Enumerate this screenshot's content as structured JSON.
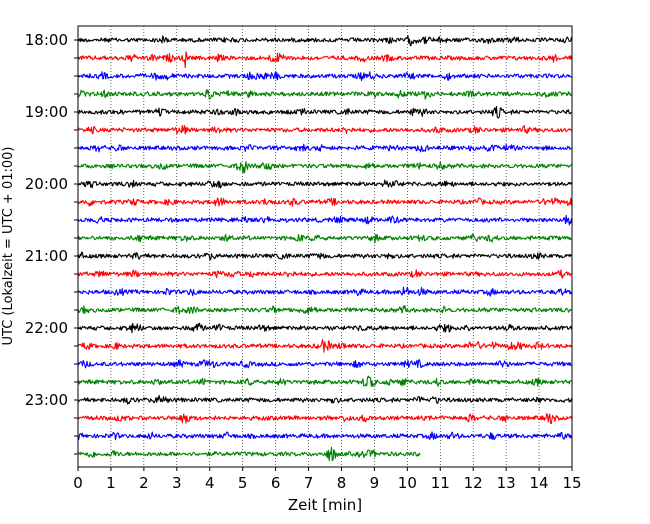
{
  "chart_data": {
    "type": "line",
    "title": "",
    "xlabel": "Zeit  [min]",
    "ylabel": "UTC (Lokalzeit = UTC + 01:00)",
    "xlim": [
      0,
      15
    ],
    "x_ticks": [
      "0",
      "1",
      "2",
      "3",
      "4",
      "5",
      "6",
      "7",
      "8",
      "9",
      "10",
      "11",
      "12",
      "13",
      "14",
      "15"
    ],
    "y_tick_labels": [
      "18:00",
      "19:00",
      "20:00",
      "21:00",
      "22:00",
      "23:00"
    ],
    "grid": "vertical dotted lines at each minute",
    "colors": [
      "#000000",
      "#ff0000",
      "#0000ff",
      "#008000"
    ],
    "traces": [
      {
        "start": "18:00",
        "end_minute": 15,
        "color": "#000000"
      },
      {
        "start": "18:15",
        "end_minute": 15,
        "color": "#ff0000",
        "spike_minute": 3.25
      },
      {
        "start": "18:30",
        "end_minute": 15,
        "color": "#0000ff"
      },
      {
        "start": "18:45",
        "end_minute": 15,
        "color": "#008000"
      },
      {
        "start": "19:00",
        "end_minute": 15,
        "color": "#000000"
      },
      {
        "start": "19:15",
        "end_minute": 15,
        "color": "#ff0000"
      },
      {
        "start": "19:30",
        "end_minute": 15,
        "color": "#0000ff"
      },
      {
        "start": "19:45",
        "end_minute": 15,
        "color": "#008000"
      },
      {
        "start": "20:00",
        "end_minute": 15,
        "color": "#000000"
      },
      {
        "start": "20:15",
        "end_minute": 15,
        "color": "#ff0000"
      },
      {
        "start": "20:30",
        "end_minute": 15,
        "color": "#0000ff"
      },
      {
        "start": "20:45",
        "end_minute": 15,
        "color": "#008000"
      },
      {
        "start": "21:00",
        "end_minute": 15,
        "color": "#000000"
      },
      {
        "start": "21:15",
        "end_minute": 15,
        "color": "#ff0000"
      },
      {
        "start": "21:30",
        "end_minute": 15,
        "color": "#0000ff"
      },
      {
        "start": "21:45",
        "end_minute": 15,
        "color": "#008000"
      },
      {
        "start": "22:00",
        "end_minute": 15,
        "color": "#000000"
      },
      {
        "start": "22:15",
        "end_minute": 15,
        "color": "#ff0000"
      },
      {
        "start": "22:30",
        "end_minute": 15,
        "color": "#0000ff"
      },
      {
        "start": "22:45",
        "end_minute": 15,
        "color": "#008000"
      },
      {
        "start": "23:00",
        "end_minute": 15,
        "color": "#000000"
      },
      {
        "start": "23:15",
        "end_minute": 15,
        "color": "#ff0000"
      },
      {
        "start": "23:30",
        "end_minute": 15,
        "color": "#0000ff"
      },
      {
        "start": "23:45",
        "end_minute": 10.4,
        "color": "#008000"
      }
    ]
  }
}
